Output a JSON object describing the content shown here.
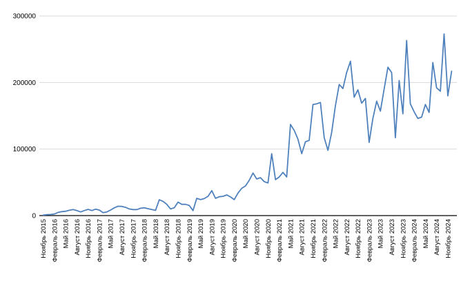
{
  "chart_data": {
    "type": "line",
    "title": "",
    "legend": "none",
    "grid": "horizontal",
    "background": "#ffffff",
    "gridline_color": "#d9d9d9",
    "axis_color": "#000000",
    "text_color": "#000000",
    "series_color": "#4f81bd",
    "ylim": [
      0,
      300000
    ],
    "yticks": [
      0,
      100000,
      200000,
      300000
    ],
    "ytick_labels": [
      "0",
      "100000",
      "200000",
      "300000"
    ],
    "x_tick_every": 3,
    "x_tick_labels": [
      "Ноябрь 2015",
      "Февраль 2016",
      "Май 2016",
      "Август 2016",
      "Ноябрь 2016",
      "Февраль 2017",
      "Май 2017",
      "Август 2017",
      "Ноябрь 2017",
      "Февраль 2018",
      "Май 2018",
      "Август 2018",
      "Ноябрь 2018",
      "Февраль 2019",
      "Май 2019",
      "Август 2019",
      "Ноябрь 2019",
      "Февраль 2020",
      "Май 2020",
      "Август 2020",
      "Ноябрь 2020",
      "Февраль 2021",
      "Май 2021",
      "Август 2021",
      "Ноябрь 2021",
      "Февраль 2022",
      "Май 2022",
      "Август 2022",
      "Ноябрь 2022",
      "Февраль 2023",
      "Май 2023",
      "Август 2023",
      "Ноябрь 2023",
      "Февраль 2024",
      "Май 2024",
      "Август 2024",
      "Ноябрь 2024"
    ],
    "series": [
      {
        "name": "monthly-values",
        "start_month": "Ноябрь 2015",
        "values": [
          700,
          1400,
          1700,
          2400,
          4800,
          5900,
          6500,
          8000,
          9000,
          7600,
          5500,
          7600,
          9300,
          7600,
          9700,
          8300,
          4500,
          5500,
          8300,
          11700,
          14000,
          13800,
          12400,
          10000,
          9000,
          9000,
          11000,
          11700,
          10400,
          9000,
          7900,
          23800,
          21400,
          16900,
          10000,
          11700,
          20300,
          16900,
          16900,
          15200,
          7500,
          26000,
          24000,
          25500,
          29000,
          37500,
          26000,
          28300,
          29000,
          31000,
          28000,
          24000,
          34000,
          41000,
          44500,
          53000,
          64000,
          55000,
          57000,
          51000,
          49000,
          93000,
          54000,
          58000,
          65000,
          58000,
          137000,
          128000,
          115000,
          93000,
          111000,
          113000,
          167000,
          168000,
          170000,
          117000,
          98000,
          125000,
          165000,
          197000,
          191000,
          215000,
          232000,
          178000,
          189000,
          169000,
          176000,
          110000,
          146000,
          172000,
          157000,
          190000,
          223000,
          215000,
          117000,
          203000,
          153000,
          263000,
          168000,
          156000,
          146000,
          148000,
          167000,
          155000,
          230000,
          192000,
          187000,
          273000,
          180000,
          217000
        ]
      }
    ]
  }
}
